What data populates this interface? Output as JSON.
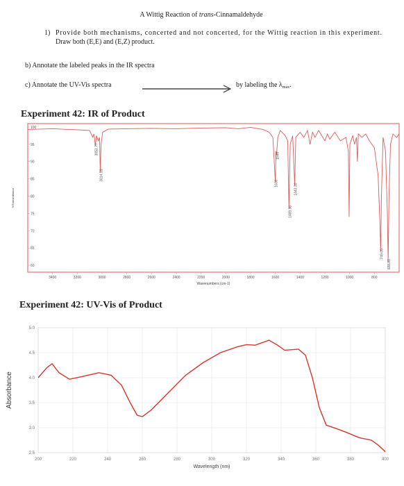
{
  "document": {
    "title_prefix": "A Wittig Reaction of ",
    "title_italic": "trans",
    "title_suffix": "-Cinnamaldehyde",
    "q1_number": "1)",
    "q1_line1": "Provide both mechanisms, concerted and not concerted, for the Wittig reaction in this experiment.",
    "q1_line2": "Draw both (E,E) and (E,Z) product.",
    "qb": "b) Annotate the labeled peaks in the IR spectra",
    "qc": "c) Annotate the UV-Vis spectra",
    "qc_note": "by labeling the λ",
    "qc_sub": "max",
    "qc_end": "."
  },
  "chart_data": [
    {
      "type": "line",
      "title": "Experiment 42: IR of Product",
      "x_label": "Wavenumbers (cm-1)",
      "y_label": "%Transmittance",
      "x": [
        3600,
        3400,
        3200,
        3100,
        3075,
        3065,
        3053.77,
        3045,
        3030,
        3020,
        3014.59,
        3008,
        2995,
        2950,
        2800,
        2600,
        2400,
        2200,
        2000,
        1900,
        1800,
        1700,
        1650,
        1620,
        1600,
        1595,
        1590,
        1580,
        1560,
        1520,
        1500,
        1489.96,
        1480,
        1460,
        1443.3,
        1435,
        1400,
        1370,
        1340,
        1320,
        1300,
        1280,
        1250,
        1200,
        1180,
        1160,
        1120,
        1075,
        1030,
        1010,
        1004,
        998,
        975,
        960,
        945,
        937,
        930,
        900,
        870,
        840,
        800,
        770,
        755,
        749.05,
        743,
        730,
        710,
        695,
        688.81,
        682,
        670,
        650,
        620,
        600
      ],
      "values": [
        99.3,
        99.5,
        99.2,
        99,
        97,
        98,
        94.5,
        97.5,
        96,
        97,
        87,
        95,
        98.5,
        99.4,
        99.5,
        99.6,
        99.5,
        99.7,
        99.8,
        99.5,
        99.9,
        99.3,
        98.5,
        97,
        84,
        93,
        92,
        97,
        99,
        97.5,
        96,
        76.5,
        95,
        97.5,
        83,
        97,
        98.5,
        97,
        99,
        95,
        98.5,
        97,
        99,
        96,
        98,
        96.5,
        98.5,
        96,
        97,
        93,
        74,
        95,
        97.5,
        95,
        97,
        90,
        98,
        97,
        98,
        96,
        94,
        86,
        72,
        64,
        80,
        97,
        93,
        75,
        61,
        80,
        95,
        98,
        97,
        98
      ],
      "color": "#e05a5a",
      "xlim": [
        3600,
        600
      ],
      "ylim": [
        58,
        101
      ],
      "xticks": [
        3400,
        3200,
        3000,
        2800,
        2600,
        2400,
        2200,
        2000,
        1800,
        1600,
        1400,
        1200,
        1000,
        800
      ],
      "yticks": [
        60,
        65,
        70,
        75,
        80,
        85,
        90,
        95,
        100
      ],
      "grid": false,
      "annotations": [
        {
          "value": 3053.77,
          "label": "3053.77"
        },
        {
          "value": 3014.59,
          "label": "3014.59"
        },
        {
          "value": 1600,
          "label": "1600"
        },
        {
          "value": 1590,
          "label": "1590"
        },
        {
          "value": 1489.96,
          "label": "1489.96"
        },
        {
          "value": 1443.3,
          "label": "1443.30"
        },
        {
          "value": 749.05,
          "label": "749.05"
        },
        {
          "value": 688.81,
          "label": "688.81"
        }
      ]
    },
    {
      "type": "line",
      "title": "Experiment 42: UV-Vis of Product",
      "x_label": "Wavelength (nm)",
      "y_label": "Absorbance",
      "x": [
        200,
        205,
        208,
        212,
        218,
        225,
        235,
        242,
        248,
        253,
        257,
        260,
        265,
        275,
        285,
        295,
        305,
        315,
        320,
        325,
        333,
        338,
        342,
        350,
        354,
        358,
        362,
        366,
        372,
        378,
        385,
        392,
        396,
        400
      ],
      "values": [
        4.0,
        4.2,
        4.28,
        4.1,
        3.97,
        4.02,
        4.1,
        4.05,
        3.85,
        3.5,
        3.25,
        3.22,
        3.35,
        3.7,
        4.05,
        4.3,
        4.5,
        4.62,
        4.66,
        4.65,
        4.75,
        4.65,
        4.55,
        4.57,
        4.45,
        4.0,
        3.4,
        3.05,
        2.98,
        2.9,
        2.8,
        2.75,
        2.65,
        2.52
      ],
      "color": "#d9342b",
      "xlim": [
        200,
        400
      ],
      "ylim": [
        2.5,
        5.0
      ],
      "xticks": [
        200,
        220,
        240,
        260,
        280,
        300,
        320,
        340,
        360,
        380,
        400
      ],
      "yticks": [
        2.5,
        {
          "value": 3.0,
          "label": "3.0"
        },
        3.5,
        {
          "value": 4.0,
          "label": "4.0"
        },
        4.5,
        {
          "value": 5.0,
          "label": "5.0"
        }
      ],
      "grid": true
    }
  ]
}
